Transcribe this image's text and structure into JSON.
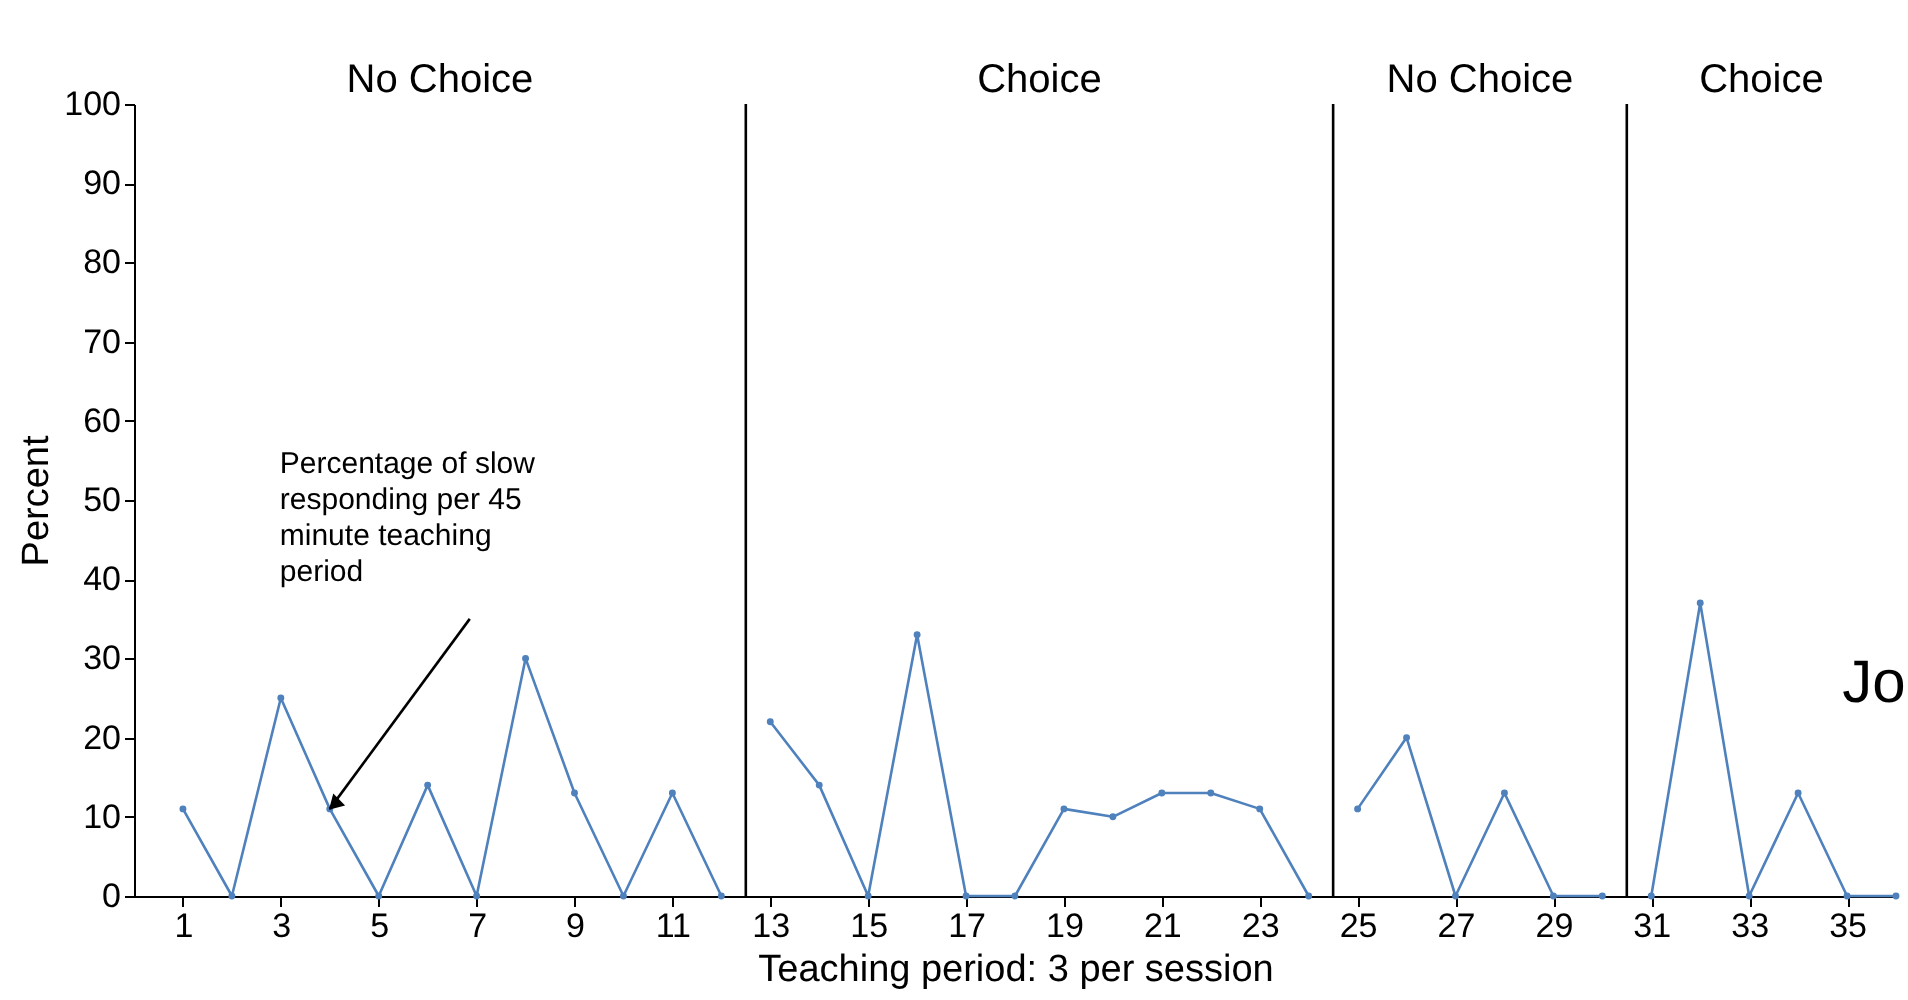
{
  "chart_data": {
    "type": "line",
    "xlabel": "Teaching period:  3 per session",
    "ylabel": "Percent",
    "xlim": [
      0,
      36
    ],
    "xticks": [
      1,
      3,
      5,
      7,
      9,
      11,
      13,
      15,
      17,
      19,
      21,
      23,
      25,
      27,
      29,
      31,
      33,
      35
    ],
    "ylim": [
      0,
      100
    ],
    "yticks": [
      0,
      10,
      20,
      30,
      40,
      50,
      60,
      70,
      80,
      90,
      100
    ],
    "grid": false,
    "marker": "circle",
    "line_style": "solid",
    "series": [
      {
        "color": "#4f81bd",
        "x": [
          1,
          2,
          3,
          4,
          5,
          6,
          7,
          8,
          9,
          10,
          11,
          12
        ],
        "values": [
          11,
          0,
          25,
          11,
          0,
          14,
          0,
          30,
          13,
          0,
          13,
          0
        ]
      },
      {
        "color": "#4f81bd",
        "x": [
          13,
          14,
          15,
          16,
          17,
          18,
          19,
          20,
          21,
          22,
          23,
          24
        ],
        "values": [
          22,
          14,
          0,
          33,
          0,
          0,
          11,
          10,
          13,
          13,
          11,
          0
        ]
      },
      {
        "color": "#4f81bd",
        "x": [
          25,
          26,
          27,
          28,
          29,
          30
        ],
        "values": [
          11,
          20,
          0,
          13,
          0,
          0
        ]
      },
      {
        "color": "#4f81bd",
        "x": [
          31,
          32,
          33,
          34,
          35,
          36
        ],
        "values": [
          0,
          37,
          0,
          13,
          0,
          0
        ]
      }
    ],
    "ref_lines": [
      {
        "axis": "x",
        "value": 12.5,
        "color": "#000000"
      },
      {
        "axis": "x",
        "value": 24.5,
        "color": "#000000"
      },
      {
        "axis": "x",
        "value": 30.5,
        "color": "#000000"
      }
    ],
    "annotations": [
      "No Choice",
      "Choice",
      "No Choice",
      "Choice",
      {
        "text": "Percentage of slow responding per 45 minute teaching period",
        "x": 4,
        "y": 11
      },
      {
        "text": "Jo"
      }
    ]
  }
}
